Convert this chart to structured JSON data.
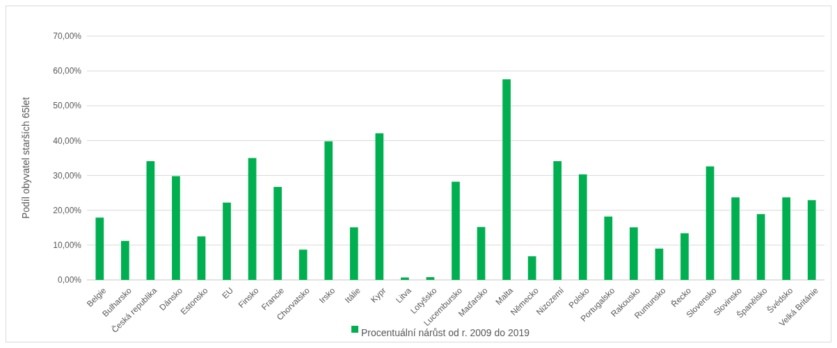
{
  "chart_data": {
    "type": "bar",
    "ylabel": "Podíl obyvatel starších 65let",
    "categories": [
      "Belgie",
      "Bulharsko",
      "Česká republika",
      "Dánsko",
      "Estonsko",
      "EU",
      "Finsko",
      "Francie",
      "Chorvatsko",
      "Irsko",
      "Itálie",
      "Kypr",
      "Litva",
      "Lotyšsko",
      "Lucembursko",
      "Maďarsko",
      "Malta",
      "Německo",
      "Nizozemí",
      "Polsko",
      "Portugalsko",
      "Rakousko",
      "Rumunsko",
      "Řecko",
      "Slovensko",
      "Slovinsko",
      "Španělsko",
      "Švédsko",
      "Velká Británie"
    ],
    "series": [
      {
        "name": "Procentuální nárůst od r. 2009 do 2019",
        "color": "#00b050",
        "values": [
          17.9,
          11.2,
          34.1,
          29.8,
          12.5,
          22.2,
          35.0,
          26.7,
          8.7,
          39.8,
          15.1,
          42.1,
          0.7,
          0.8,
          28.2,
          15.2,
          57.6,
          6.8,
          34.1,
          30.3,
          18.2,
          15.1,
          9.0,
          13.4,
          32.6,
          23.7,
          18.9,
          23.7,
          22.9
        ]
      }
    ],
    "ylim": [
      0,
      70
    ],
    "yticks": [
      {
        "value": 0,
        "label": "0,00%"
      },
      {
        "value": 10,
        "label": "10,00%"
      },
      {
        "value": 20,
        "label": "20,00%"
      },
      {
        "value": 30,
        "label": "30,00%"
      },
      {
        "value": 40,
        "label": "40,00%"
      },
      {
        "value": 50,
        "label": "50,00%"
      },
      {
        "value": 60,
        "label": "60,00%"
      },
      {
        "value": 70,
        "label": "70,00%"
      }
    ],
    "grid": "y",
    "legend": "bottom"
  }
}
